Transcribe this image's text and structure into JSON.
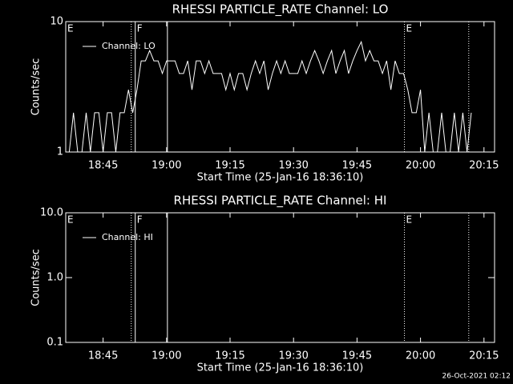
{
  "footer": "26-Oct-2021 02:12",
  "chart_data": [
    {
      "type": "line",
      "title": "RHESSI PARTICLE_RATE Channel: LO",
      "x_label": "Start Time (25-Jan-16 18:36:10)",
      "y_label": "Counts/sec",
      "log_y": true,
      "xlim": [
        1116.17,
        1217.5
      ],
      "ylim": [
        1,
        10
      ],
      "xticks": [
        {
          "value": 1125,
          "label": "18:45"
        },
        {
          "value": 1140,
          "label": "19:00"
        },
        {
          "value": 1155,
          "label": "19:15"
        },
        {
          "value": 1170,
          "label": "19:30"
        },
        {
          "value": 1185,
          "label": "19:45"
        },
        {
          "value": 1200,
          "label": "20:00"
        },
        {
          "value": 1215,
          "label": "20:15"
        }
      ],
      "yticks": [
        1,
        10
      ],
      "flags": [
        {
          "label": "E",
          "x": 1116.17
        },
        {
          "label": "F",
          "x": 1132.6
        },
        {
          "label": "E",
          "x": 1196.2
        }
      ],
      "vlines": [
        {
          "x": 1131.65,
          "style": "dotted"
        },
        {
          "x": 1132.6,
          "style": "solid"
        },
        {
          "x": 1140.2,
          "style": "solid"
        },
        {
          "x": 1196.2,
          "style": "dotted"
        },
        {
          "x": 1211.4,
          "style": "dotted"
        }
      ],
      "x": [
        1117,
        1118,
        1119,
        1120,
        1121,
        1122,
        1123,
        1124,
        1125,
        1126,
        1127,
        1128,
        1129,
        1130,
        1131,
        1132,
        1133,
        1134,
        1135,
        1136,
        1137,
        1138,
        1139,
        1140,
        1141,
        1142,
        1143,
        1144,
        1145,
        1146,
        1147,
        1148,
        1149,
        1150,
        1151,
        1152,
        1153,
        1154,
        1155,
        1156,
        1157,
        1158,
        1159,
        1160,
        1161,
        1162,
        1163,
        1164,
        1165,
        1166,
        1167,
        1168,
        1169,
        1170,
        1171,
        1172,
        1173,
        1174,
        1175,
        1176,
        1177,
        1178,
        1179,
        1180,
        1181,
        1182,
        1183,
        1184,
        1185,
        1186,
        1187,
        1188,
        1189,
        1190,
        1191,
        1192,
        1193,
        1194,
        1195,
        1196,
        1197,
        1198,
        1199,
        1200,
        1201,
        1202,
        1203,
        1204,
        1205,
        1206,
        1207,
        1208,
        1209,
        1210,
        1211,
        1212
      ],
      "series": [
        {
          "name": "Channel: LO",
          "color": "#ffffff",
          "values": [
            1,
            2,
            1,
            1,
            2,
            1,
            2,
            2,
            1,
            2,
            2,
            1,
            2,
            2,
            3,
            2,
            3,
            5,
            5,
            6,
            5,
            5,
            4,
            5,
            5,
            5,
            4,
            4,
            5,
            3,
            5,
            5,
            4,
            5,
            4,
            4,
            4,
            3,
            4,
            3,
            4,
            4,
            3,
            4,
            5,
            4,
            5,
            3,
            4,
            5,
            4,
            5,
            4,
            4,
            4,
            5,
            4,
            5,
            6,
            5,
            4,
            5,
            6,
            4,
            5,
            6,
            4,
            5,
            6,
            7,
            5,
            6,
            5,
            5,
            4,
            5,
            3,
            5,
            4,
            4,
            3,
            2,
            2,
            3,
            1,
            2,
            1,
            1,
            2,
            1,
            1,
            2,
            1,
            2,
            1,
            2
          ]
        }
      ]
    },
    {
      "type": "line",
      "title": "RHESSI PARTICLE_RATE Channel: HI",
      "x_label": "Start Time (25-Jan-16 18:36:10)",
      "y_label": "Counts/sec",
      "log_y": true,
      "xlim": [
        1116.17,
        1217.5
      ],
      "ylim": [
        0.1,
        10
      ],
      "xticks": [
        {
          "value": 1125,
          "label": "18:45"
        },
        {
          "value": 1140,
          "label": "19:00"
        },
        {
          "value": 1155,
          "label": "19:15"
        },
        {
          "value": 1170,
          "label": "19:30"
        },
        {
          "value": 1185,
          "label": "19:45"
        },
        {
          "value": 1200,
          "label": "20:00"
        },
        {
          "value": 1215,
          "label": "20:15"
        }
      ],
      "yticks": [
        0.1,
        {
          "value": 1,
          "label": "1.0"
        },
        {
          "value": 10,
          "label": "10.0"
        }
      ],
      "flags": [
        {
          "label": "E",
          "x": 1116.17
        },
        {
          "label": "F",
          "x": 1132.6
        },
        {
          "label": "E",
          "x": 1196.2
        }
      ],
      "vlines": [
        {
          "x": 1131.65,
          "style": "dotted"
        },
        {
          "x": 1132.6,
          "style": "solid"
        },
        {
          "x": 1140.2,
          "style": "solid"
        },
        {
          "x": 1196.2,
          "style": "dotted"
        },
        {
          "x": 1211.4,
          "style": "dotted"
        }
      ],
      "x": [],
      "series": [
        {
          "name": "Channel: HI",
          "color": "#ffffff",
          "values": []
        }
      ]
    }
  ]
}
